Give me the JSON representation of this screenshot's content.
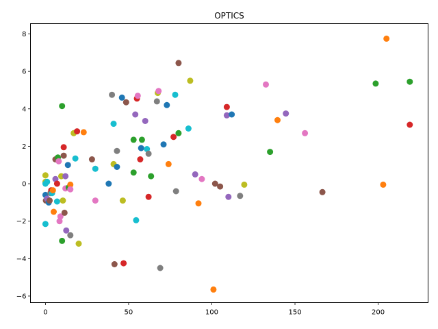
{
  "chart_data": {
    "type": "scatter",
    "title": "OPTICS",
    "xlabel": "",
    "ylabel": "",
    "xlim": [
      -9,
      230
    ],
    "ylim": [
      -6.35,
      8.55
    ],
    "grid": false,
    "legend": "none",
    "xticks": [
      0,
      50,
      100,
      150,
      200
    ],
    "yticks": [
      -6,
      -4,
      -2,
      0,
      2,
      4,
      6,
      8
    ],
    "colors": [
      "#1f77b4",
      "#ff7f0e",
      "#2ca02c",
      "#d62728",
      "#9467bd",
      "#8c564b",
      "#e377c2",
      "#7f7f7f",
      "#bcbd22",
      "#17becf"
    ],
    "points": [
      {
        "x": 0,
        "y": -2.15,
        "c": 9
      },
      {
        "x": 0,
        "y": 0.45,
        "c": 8
      },
      {
        "x": 0,
        "y": 0.1,
        "c": 8
      },
      {
        "x": 0,
        "y": 0.0,
        "c": 9
      },
      {
        "x": 0,
        "y": -0.6,
        "c": 0
      },
      {
        "x": 0.3,
        "y": -0.9,
        "c": 5
      },
      {
        "x": 1,
        "y": 0.1,
        "c": 9
      },
      {
        "x": 1,
        "y": -0.8,
        "c": 4
      },
      {
        "x": 2,
        "y": -1.0,
        "c": 0
      },
      {
        "x": 2.5,
        "y": -0.9,
        "c": 5
      },
      {
        "x": 3,
        "y": -0.5,
        "c": 7
      },
      {
        "x": 3.5,
        "y": -0.35,
        "c": 3
      },
      {
        "x": 4,
        "y": -0.5,
        "c": 9
      },
      {
        "x": 4.5,
        "y": -0.35,
        "c": 1
      },
      {
        "x": 5,
        "y": -1.5,
        "c": 1
      },
      {
        "x": 6,
        "y": 1.3,
        "c": 5
      },
      {
        "x": 6,
        "y": 0.25,
        "c": 4
      },
      {
        "x": 7,
        "y": -0.95,
        "c": 9
      },
      {
        "x": 7,
        "y": 0.0,
        "c": 3
      },
      {
        "x": 7.5,
        "y": 1.4,
        "c": 2
      },
      {
        "x": 8,
        "y": 1.2,
        "c": 6
      },
      {
        "x": 8.5,
        "y": -2.0,
        "c": 6
      },
      {
        "x": 9,
        "y": -1.75,
        "c": 6
      },
      {
        "x": 9.5,
        "y": 0.4,
        "c": 8
      },
      {
        "x": 10,
        "y": 4.15,
        "c": 2
      },
      {
        "x": 10,
        "y": -3.05,
        "c": 2
      },
      {
        "x": 10.5,
        "y": -0.9,
        "c": 8
      },
      {
        "x": 11,
        "y": 1.95,
        "c": 3
      },
      {
        "x": 11,
        "y": 1.5,
        "c": 5
      },
      {
        "x": 11.5,
        "y": -1.55,
        "c": 5
      },
      {
        "x": 12,
        "y": 0.4,
        "c": 4
      },
      {
        "x": 12,
        "y": -0.25,
        "c": 6
      },
      {
        "x": 12.5,
        "y": -2.5,
        "c": 4
      },
      {
        "x": 13.5,
        "y": 1.0,
        "c": 0
      },
      {
        "x": 14,
        "y": -0.2,
        "c": 2
      },
      {
        "x": 15,
        "y": -0.05,
        "c": 1
      },
      {
        "x": 15,
        "y": -0.3,
        "c": 6
      },
      {
        "x": 15,
        "y": -2.75,
        "c": 7
      },
      {
        "x": 17,
        "y": 2.7,
        "c": 8
      },
      {
        "x": 18,
        "y": 1.35,
        "c": 9
      },
      {
        "x": 19,
        "y": 2.8,
        "c": 3
      },
      {
        "x": 20,
        "y": -3.2,
        "c": 8
      },
      {
        "x": 23,
        "y": 2.75,
        "c": 1
      },
      {
        "x": 28,
        "y": 1.3,
        "c": 5
      },
      {
        "x": 30,
        "y": 0.8,
        "c": 9
      },
      {
        "x": 30,
        "y": -0.9,
        "c": 6
      },
      {
        "x": 38,
        "y": 0.0,
        "c": 0
      },
      {
        "x": 40,
        "y": 4.75,
        "c": 7
      },
      {
        "x": 41,
        "y": 3.2,
        "c": 9
      },
      {
        "x": 41,
        "y": 1.05,
        "c": 8
      },
      {
        "x": 41.5,
        "y": -4.3,
        "c": 5
      },
      {
        "x": 43,
        "y": 1.75,
        "c": 7
      },
      {
        "x": 43,
        "y": 0.9,
        "c": 0
      },
      {
        "x": 46,
        "y": 4.6,
        "c": 0
      },
      {
        "x": 46.5,
        "y": -0.9,
        "c": 8
      },
      {
        "x": 47,
        "y": -4.25,
        "c": 3
      },
      {
        "x": 48.5,
        "y": 4.35,
        "c": 5
      },
      {
        "x": 53,
        "y": 2.35,
        "c": 2
      },
      {
        "x": 53,
        "y": 0.6,
        "c": 2
      },
      {
        "x": 54,
        "y": 3.7,
        "c": 4
      },
      {
        "x": 54.5,
        "y": -1.95,
        "c": 9
      },
      {
        "x": 55,
        "y": 4.55,
        "c": 3
      },
      {
        "x": 55.5,
        "y": 4.7,
        "c": 6
      },
      {
        "x": 57,
        "y": 1.3,
        "c": 3
      },
      {
        "x": 57.5,
        "y": 1.9,
        "c": 0
      },
      {
        "x": 58,
        "y": 2.35,
        "c": 2
      },
      {
        "x": 60,
        "y": 3.35,
        "c": 4
      },
      {
        "x": 61,
        "y": 1.85,
        "c": 9
      },
      {
        "x": 62,
        "y": 1.6,
        "c": 7
      },
      {
        "x": 62,
        "y": -0.7,
        "c": 3
      },
      {
        "x": 63.5,
        "y": 0.4,
        "c": 2
      },
      {
        "x": 67,
        "y": 4.4,
        "c": 7
      },
      {
        "x": 67.5,
        "y": 4.85,
        "c": 8
      },
      {
        "x": 68,
        "y": 4.95,
        "c": 6
      },
      {
        "x": 69,
        "y": -4.5,
        "c": 7
      },
      {
        "x": 71,
        "y": 2.1,
        "c": 0
      },
      {
        "x": 73,
        "y": 4.2,
        "c": 0
      },
      {
        "x": 74,
        "y": 1.05,
        "c": 1
      },
      {
        "x": 77,
        "y": 2.5,
        "c": 3
      },
      {
        "x": 78,
        "y": 4.75,
        "c": 9
      },
      {
        "x": 78.5,
        "y": -0.4,
        "c": 7
      },
      {
        "x": 80,
        "y": 2.7,
        "c": 2
      },
      {
        "x": 80,
        "y": 6.45,
        "c": 5
      },
      {
        "x": 86,
        "y": 2.95,
        "c": 9
      },
      {
        "x": 87,
        "y": 5.5,
        "c": 8
      },
      {
        "x": 90,
        "y": 0.5,
        "c": 4
      },
      {
        "x": 92,
        "y": -1.05,
        "c": 1
      },
      {
        "x": 94,
        "y": 0.25,
        "c": 6
      },
      {
        "x": 101,
        "y": -5.65,
        "c": 1
      },
      {
        "x": 102,
        "y": 0.0,
        "c": 5
      },
      {
        "x": 105,
        "y": -0.15,
        "c": 5
      },
      {
        "x": 109,
        "y": 4.1,
        "c": 3
      },
      {
        "x": 109,
        "y": 3.65,
        "c": 4
      },
      {
        "x": 110,
        "y": -0.7,
        "c": 4
      },
      {
        "x": 112,
        "y": 3.7,
        "c": 0
      },
      {
        "x": 117,
        "y": -0.65,
        "c": 7
      },
      {
        "x": 119.5,
        "y": -0.05,
        "c": 8
      },
      {
        "x": 132.5,
        "y": 5.3,
        "c": 6
      },
      {
        "x": 135,
        "y": 1.7,
        "c": 2
      },
      {
        "x": 139.5,
        "y": 3.4,
        "c": 1
      },
      {
        "x": 144.5,
        "y": 3.75,
        "c": 4
      },
      {
        "x": 156,
        "y": 2.7,
        "c": 6
      },
      {
        "x": 166.5,
        "y": -0.45,
        "c": 5
      },
      {
        "x": 198.5,
        "y": 5.35,
        "c": 2
      },
      {
        "x": 203,
        "y": -0.05,
        "c": 1
      },
      {
        "x": 205,
        "y": 7.75,
        "c": 1
      },
      {
        "x": 219,
        "y": 5.45,
        "c": 2
      },
      {
        "x": 219,
        "y": 3.15,
        "c": 3
      }
    ]
  }
}
